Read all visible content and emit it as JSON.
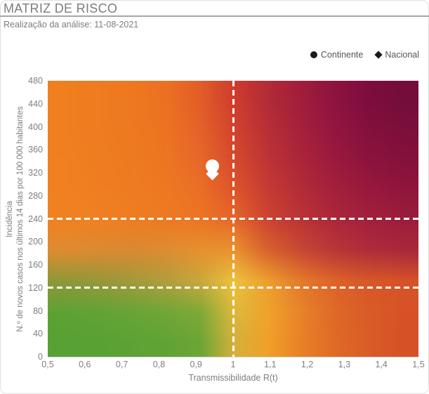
{
  "header": {
    "title": "MATRIZ DE RISCO",
    "subtitle": "Realização da análise: 11-08-2021"
  },
  "legend": {
    "continente_label": "Continente",
    "nacional_label": "Nacional",
    "marker_color": "#1a1a1a"
  },
  "chart_data": {
    "type": "scatter",
    "title": "MATRIZ DE RISCO",
    "xlabel": "Transmissibilidade R(t)",
    "ylabel_line1": "Incidência",
    "ylabel_line2": "N.º de novos casos nos últimos 14 dias por 100 000 habitantes",
    "xlim": [
      0.5,
      1.5
    ],
    "ylim": [
      0,
      480
    ],
    "x_ticks": [
      "0,5",
      "0,6",
      "0,7",
      "0,8",
      "0,9",
      "1",
      "1,1",
      "1,2",
      "1,3",
      "1,4",
      "1,5"
    ],
    "y_ticks": [
      480,
      440,
      400,
      360,
      320,
      280,
      240,
      200,
      160,
      120,
      80,
      40,
      0
    ],
    "grid": false,
    "legend_position": "top-right",
    "threshold_lines": {
      "vertical_x": 1.0,
      "horizontal_y": [
        240,
        120
      ],
      "color": "#ffffff",
      "style": "dashed"
    },
    "series": [
      {
        "name": "Continente",
        "marker": "circle",
        "color": "#ffffff",
        "x": 0.945,
        "y": 332
      },
      {
        "name": "Nacional",
        "marker": "diamond",
        "color": "#ffffff",
        "x": 0.945,
        "y": 318
      }
    ],
    "background_gradient_grid": {
      "x_values": [
        0.5,
        0.6,
        0.7,
        0.8,
        0.9,
        1.0,
        1.1,
        1.2,
        1.3,
        1.4,
        1.5
      ],
      "y_values": [
        480,
        420,
        360,
        300,
        240,
        180,
        120,
        60,
        0
      ],
      "colors": [
        [
          "#f07f1f",
          "#ef7c20",
          "#ee7820",
          "#eb7122",
          "#e25d28",
          "#cf3c2e",
          "#b32b37",
          "#a11d3b",
          "#8e1340",
          "#7d0d3e",
          "#740d3a"
        ],
        [
          "#f07f20",
          "#ef7c20",
          "#ee7920",
          "#ec7322",
          "#e4622a",
          "#d2422e",
          "#b72f36",
          "#a5213b",
          "#931540",
          "#83103d",
          "#7b0f3b"
        ],
        [
          "#f08020",
          "#ef7d20",
          "#ee7a21",
          "#ed7522",
          "#e6682a",
          "#d64a2d",
          "#bd3435",
          "#ab253a",
          "#9a1a3e",
          "#8c133d",
          "#84113b"
        ],
        [
          "#f08121",
          "#f07e21",
          "#ef7b21",
          "#ee7822",
          "#ea6f27",
          "#de542b",
          "#c63b33",
          "#b32c38",
          "#a4203c",
          "#98193d",
          "#90163c"
        ],
        [
          "#f08221",
          "#f08021",
          "#ef7d22",
          "#ee7a22",
          "#ed7523",
          "#e6672a",
          "#cd4431",
          "#bb3336",
          "#ad273a",
          "#a3203c",
          "#9c1d3c"
        ],
        [
          "#de8c31",
          "#da8b32",
          "#d98a33",
          "#dd8d31",
          "#e69130",
          "#eb9330",
          "#d8622d",
          "#c84833",
          "#ba3638",
          "#b02d3a",
          "#aa283b"
        ],
        [
          "#8f9838",
          "#97983a",
          "#a39a3b",
          "#b29e3b",
          "#c9a83c",
          "#ecc23e",
          "#ed9e2e",
          "#e47a2a",
          "#dc632a",
          "#d75828",
          "#d55328"
        ],
        [
          "#5ea235",
          "#62a336",
          "#68a537",
          "#70a737",
          "#7fa938",
          "#ddb93c",
          "#f0a32c",
          "#e8822a",
          "#df6928",
          "#da5b27",
          "#d75327"
        ],
        [
          "#58a134",
          "#5aa134",
          "#5ea235",
          "#62a335",
          "#6ca636",
          "#d4b03b",
          "#f0a028",
          "#e88127",
          "#e06a27",
          "#da5c26",
          "#d65126"
        ]
      ]
    }
  }
}
